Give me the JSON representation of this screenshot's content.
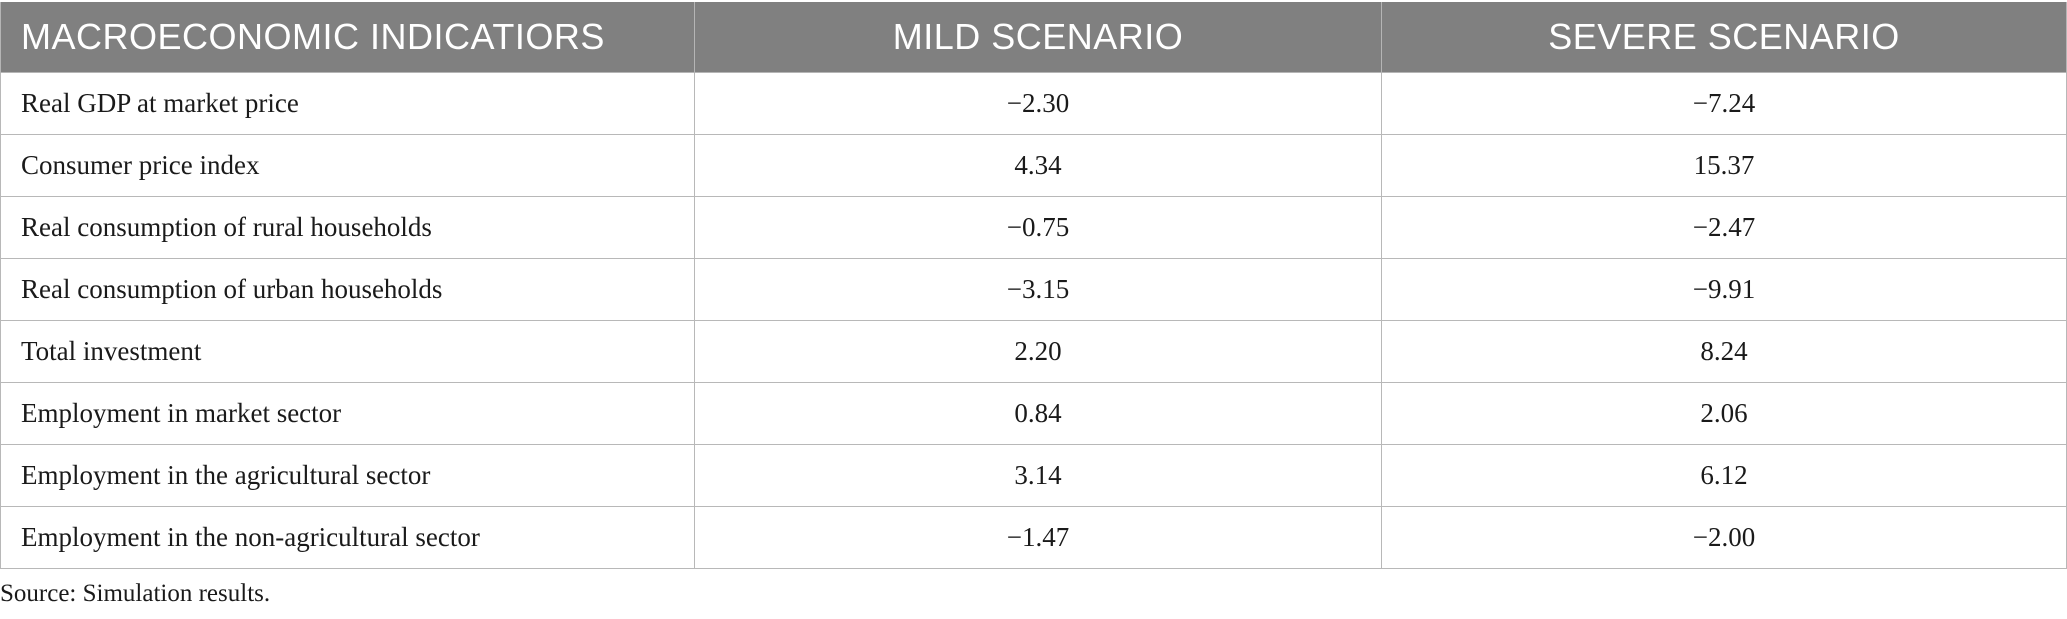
{
  "table": {
    "headers": [
      "MACROECONOMIC INDICATIORS",
      "MILD SCENARIO",
      "SEVERE SCENARIO"
    ],
    "rows": [
      {
        "indicator": "Real GDP at market price",
        "mild": "−2.30",
        "severe": "−7.24"
      },
      {
        "indicator": "Consumer price index",
        "mild": "4.34",
        "severe": "15.37"
      },
      {
        "indicator": "Real consumption of rural households",
        "mild": "−0.75",
        "severe": "−2.47"
      },
      {
        "indicator": "Real consumption of urban households",
        "mild": "−3.15",
        "severe": "−9.91"
      },
      {
        "indicator": "Total investment",
        "mild": "2.20",
        "severe": "8.24"
      },
      {
        "indicator": "Employment in market sector",
        "mild": "0.84",
        "severe": "2.06"
      },
      {
        "indicator": "Employment in the agricultural sector",
        "mild": "3.14",
        "severe": "6.12"
      },
      {
        "indicator": "Employment in the non-agricultural sector",
        "mild": "−1.47",
        "severe": "−2.00"
      }
    ]
  },
  "footnote": "Source: Simulation results."
}
